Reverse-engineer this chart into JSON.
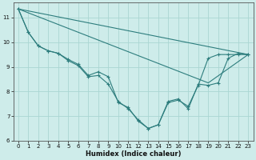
{
  "bg_color": "#ceecea",
  "line_color": "#2d7d7d",
  "grid_color": "#aad6d3",
  "xlabel": "Humidex (Indice chaleur)",
  "xlim": [
    -0.5,
    23.5
  ],
  "ylim": [
    6,
    11.6
  ],
  "yticks": [
    6,
    7,
    8,
    9,
    10,
    11
  ],
  "xticks": [
    0,
    1,
    2,
    3,
    4,
    5,
    6,
    7,
    8,
    9,
    10,
    11,
    12,
    13,
    14,
    15,
    16,
    17,
    18,
    19,
    20,
    21,
    22,
    23
  ],
  "curve1": {
    "x": [
      0,
      1,
      2,
      3,
      4,
      5,
      6,
      7,
      8,
      9,
      10,
      11,
      12,
      13,
      14,
      15,
      16,
      17,
      18,
      19,
      20,
      21,
      22,
      23
    ],
    "y": [
      11.35,
      10.4,
      9.85,
      9.65,
      9.55,
      9.25,
      9.05,
      8.6,
      8.65,
      8.3,
      7.6,
      7.3,
      6.85,
      6.5,
      6.65,
      7.55,
      7.65,
      7.4,
      8.25,
      9.35,
      9.5,
      9.5,
      9.5,
      9.5
    ]
  },
  "curve2": {
    "x": [
      0,
      1,
      2,
      3,
      4,
      5,
      6,
      7,
      8,
      9,
      10,
      11,
      12,
      13,
      14,
      15,
      16,
      17,
      18,
      19,
      20,
      21,
      22,
      23
    ],
    "y": [
      11.35,
      10.4,
      9.85,
      9.65,
      9.55,
      9.3,
      9.1,
      8.65,
      8.8,
      8.6,
      7.55,
      7.35,
      6.8,
      6.5,
      6.65,
      7.6,
      7.7,
      7.3,
      8.3,
      8.25,
      8.35,
      9.35,
      9.55,
      9.5
    ]
  },
  "line1": {
    "x": [
      0,
      23
    ],
    "y": [
      11.35,
      9.5
    ]
  },
  "line2": {
    "x": [
      0,
      19,
      23
    ],
    "y": [
      11.35,
      8.35,
      9.5
    ]
  }
}
